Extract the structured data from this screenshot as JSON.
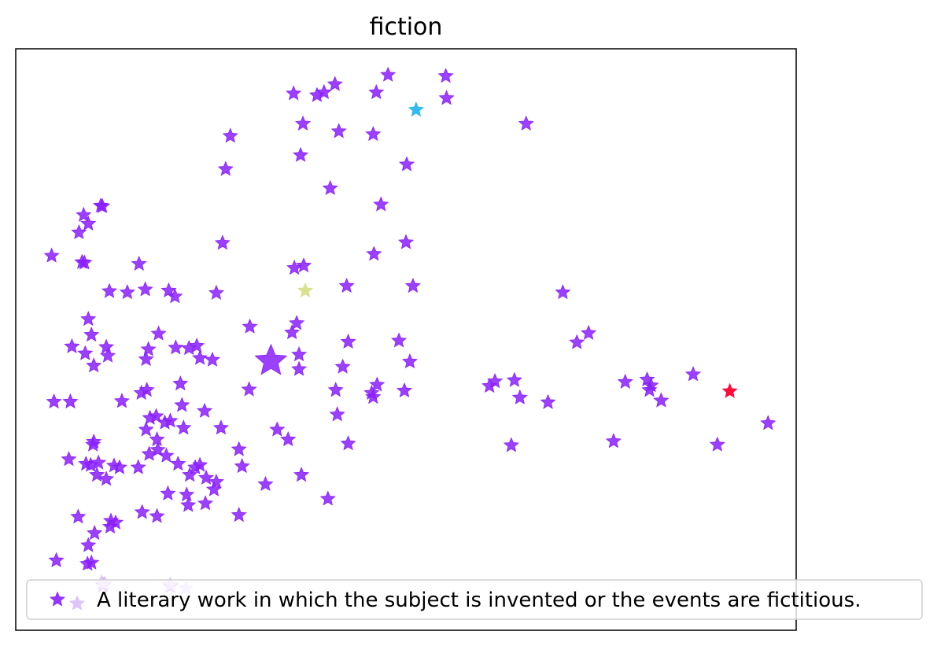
{
  "chart_data": {
    "type": "scatter",
    "title": "fiction",
    "xlabel": "",
    "ylabel": "",
    "xlim": [
      0,
      100
    ],
    "ylim": [
      0,
      100
    ],
    "grid": false,
    "axis_ticks": false,
    "marker": "star",
    "legend": {
      "placement": "lower-left",
      "label": "A literary work in which the subject is invented or the events are fictitious."
    },
    "series": [
      {
        "name": "A literary work in which the subject is invented or the events are fictitious.",
        "color": "#8a1fff",
        "points": [
          [
            47.7,
            95.5
          ],
          [
            55.1,
            95.3
          ],
          [
            35.6,
            92.3
          ],
          [
            38.6,
            92.0
          ],
          [
            39.5,
            92.5
          ],
          [
            40.9,
            93.9
          ],
          [
            46.2,
            92.5
          ],
          [
            55.2,
            91.5
          ],
          [
            36.8,
            87.1
          ],
          [
            41.4,
            85.8
          ],
          [
            45.8,
            85.3
          ],
          [
            27.5,
            85.0
          ],
          [
            65.4,
            87.1
          ],
          [
            36.5,
            81.7
          ],
          [
            26.9,
            79.3
          ],
          [
            50.1,
            80.1
          ],
          [
            40.3,
            76.0
          ],
          [
            46.8,
            73.2
          ],
          [
            10.9,
            73.0
          ],
          [
            11.1,
            72.9
          ],
          [
            8.7,
            71.4
          ],
          [
            9.3,
            69.9
          ],
          [
            8.1,
            68.4
          ],
          [
            26.5,
            66.6
          ],
          [
            50.0,
            66.7
          ],
          [
            4.6,
            64.4
          ],
          [
            8.5,
            63.3
          ],
          [
            8.8,
            63.2
          ],
          [
            15.8,
            63.0
          ],
          [
            35.7,
            62.3
          ],
          [
            36.9,
            62.7
          ],
          [
            45.9,
            64.7
          ],
          [
            42.4,
            59.2
          ],
          [
            50.9,
            59.2
          ],
          [
            12.0,
            58.3
          ],
          [
            14.3,
            58.1
          ],
          [
            16.6,
            58.6
          ],
          [
            19.6,
            58.4
          ],
          [
            20.4,
            57.4
          ],
          [
            25.7,
            58.0
          ],
          [
            70.1,
            58.1
          ],
          [
            9.3,
            53.5
          ],
          [
            36.0,
            52.8
          ],
          [
            30.0,
            52.2
          ],
          [
            35.4,
            51.2
          ],
          [
            18.3,
            51.0
          ],
          [
            9.7,
            50.8
          ],
          [
            42.6,
            49.6
          ],
          [
            49.1,
            49.8
          ],
          [
            7.2,
            48.8
          ],
          [
            11.6,
            48.7
          ],
          [
            17.0,
            48.3
          ],
          [
            20.5,
            48.6
          ],
          [
            22.2,
            48.5
          ],
          [
            23.2,
            48.9
          ],
          [
            73.4,
            51.1
          ],
          [
            71.9,
            49.5
          ],
          [
            8.9,
            47.6
          ],
          [
            11.8,
            47.2
          ],
          [
            36.3,
            47.4
          ],
          [
            16.7,
            46.6
          ],
          [
            25.2,
            46.5
          ],
          [
            23.6,
            46.8
          ],
          [
            10.0,
            45.5
          ],
          [
            50.5,
            46.2
          ],
          [
            41.9,
            45.3
          ],
          [
            36.3,
            44.9
          ],
          [
            61.4,
            42.8
          ],
          [
            46.3,
            42.2
          ],
          [
            80.9,
            43.1
          ],
          [
            86.8,
            44.0
          ],
          [
            81.4,
            42.1
          ],
          [
            21.1,
            42.4
          ],
          [
            63.9,
            43.0
          ],
          [
            78.1,
            42.7
          ],
          [
            81.2,
            41.3
          ],
          [
            60.7,
            42.0
          ],
          [
            16.8,
            41.3
          ],
          [
            16.1,
            40.8
          ],
          [
            29.9,
            41.4
          ],
          [
            41.0,
            41.3
          ],
          [
            49.8,
            41.2
          ],
          [
            45.6,
            40.8
          ],
          [
            45.8,
            40.1
          ],
          [
            64.6,
            40.0
          ],
          [
            4.9,
            39.3
          ],
          [
            7.0,
            39.3
          ],
          [
            13.6,
            39.4
          ],
          [
            21.3,
            38.7
          ],
          [
            68.2,
            39.2
          ],
          [
            82.7,
            39.5
          ],
          [
            24.2,
            37.7
          ],
          [
            41.2,
            37.1
          ],
          [
            19.8,
            36.0
          ],
          [
            17.2,
            36.5
          ],
          [
            18.0,
            36.8
          ],
          [
            19.1,
            35.7
          ],
          [
            21.5,
            34.8
          ],
          [
            26.3,
            34.8
          ],
          [
            16.7,
            34.5
          ],
          [
            33.5,
            34.5
          ],
          [
            34.9,
            32.8
          ],
          [
            10.0,
            32.4
          ],
          [
            18.1,
            32.8
          ],
          [
            42.6,
            32.1
          ],
          [
            9.9,
            31.9
          ],
          [
            96.4,
            35.6
          ],
          [
            89.9,
            31.9
          ],
          [
            63.5,
            31.8
          ],
          [
            76.6,
            32.5
          ],
          [
            18.2,
            31.0
          ],
          [
            28.6,
            31.1
          ],
          [
            19.3,
            30.0
          ],
          [
            17.1,
            30.3
          ],
          [
            9.0,
            28.6
          ],
          [
            9.6,
            28.4
          ],
          [
            10.6,
            28.8
          ],
          [
            6.8,
            29.4
          ],
          [
            12.6,
            28.3
          ],
          [
            13.3,
            28.0
          ],
          [
            15.7,
            28.0
          ],
          [
            20.8,
            28.6
          ],
          [
            23.0,
            28.0
          ],
          [
            23.6,
            28.4
          ],
          [
            29.0,
            28.2
          ],
          [
            10.4,
            26.7
          ],
          [
            11.6,
            26.0
          ],
          [
            22.3,
            26.7
          ],
          [
            24.4,
            26.2
          ],
          [
            32.0,
            25.1
          ],
          [
            25.7,
            25.5
          ],
          [
            36.6,
            26.7
          ],
          [
            25.4,
            24.2
          ],
          [
            19.5,
            23.5
          ],
          [
            21.9,
            23.3
          ],
          [
            40.0,
            22.6
          ],
          [
            22.1,
            21.5
          ],
          [
            24.3,
            21.8
          ],
          [
            16.2,
            20.3
          ],
          [
            18.1,
            19.6
          ],
          [
            28.6,
            19.8
          ],
          [
            8.0,
            19.5
          ],
          [
            12.2,
            18.8
          ],
          [
            12.8,
            18.5
          ],
          [
            12.1,
            17.8
          ],
          [
            10.1,
            16.7
          ],
          [
            9.3,
            14.6
          ],
          [
            5.2,
            12.0
          ],
          [
            9.7,
            11.6
          ],
          [
            9.2,
            11.4
          ],
          [
            11.2,
            7.7
          ],
          [
            19.8,
            7.6
          ]
        ]
      },
      {
        "name": "",
        "color": "#26b8f0",
        "points": [
          [
            51.3,
            89.5
          ]
        ]
      },
      {
        "name": "",
        "color": "#d6e08a",
        "points": [
          [
            37.1,
            58.4
          ]
        ]
      },
      {
        "name": "",
        "color": "#ff0030",
        "points": [
          [
            91.5,
            41.1
          ]
        ]
      }
    ],
    "highlight": {
      "color": "#8a1fff",
      "point": [
        32.7,
        46.3
      ],
      "size": "large"
    },
    "faded_points": {
      "color": "#d9bfff",
      "points": [
        [
          11.4,
          8.0
        ],
        [
          19.8,
          7.8
        ],
        [
          21.8,
          7.2
        ],
        [
          11.0,
          8.2
        ]
      ]
    }
  }
}
